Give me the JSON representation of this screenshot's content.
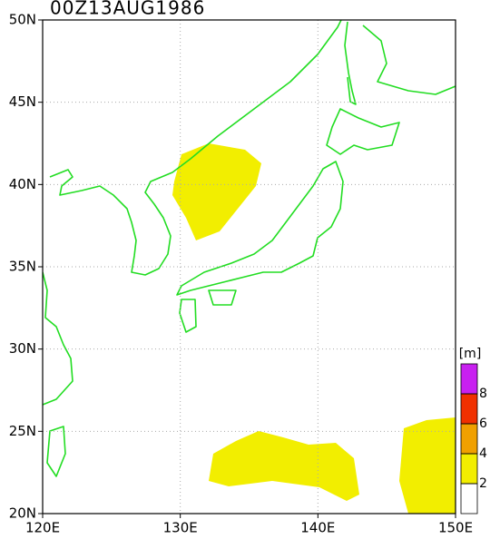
{
  "title": "00Z13AUG1986",
  "map": {
    "xlim": [
      120,
      150
    ],
    "ylim": [
      20,
      50
    ],
    "xticks": [
      {
        "value": 120,
        "label": "120E"
      },
      {
        "value": 130,
        "label": "130E"
      },
      {
        "value": 140,
        "label": "140E"
      },
      {
        "value": 150,
        "label": "150E"
      }
    ],
    "yticks": [
      {
        "value": 20,
        "label": "20N"
      },
      {
        "value": 25,
        "label": "25N"
      },
      {
        "value": 30,
        "label": "30N"
      },
      {
        "value": 35,
        "label": "35N"
      },
      {
        "value": 40,
        "label": "40N"
      },
      {
        "value": 45,
        "label": "45N"
      },
      {
        "value": 50,
        "label": "50N"
      }
    ],
    "grid": true
  },
  "colorbar": {
    "unit": "[m]",
    "levels": [
      2,
      4,
      6,
      8
    ],
    "colors": [
      "#ffffff",
      "#f2ee00",
      "#f0a000",
      "#f03000",
      "#c820f0"
    ]
  }
}
